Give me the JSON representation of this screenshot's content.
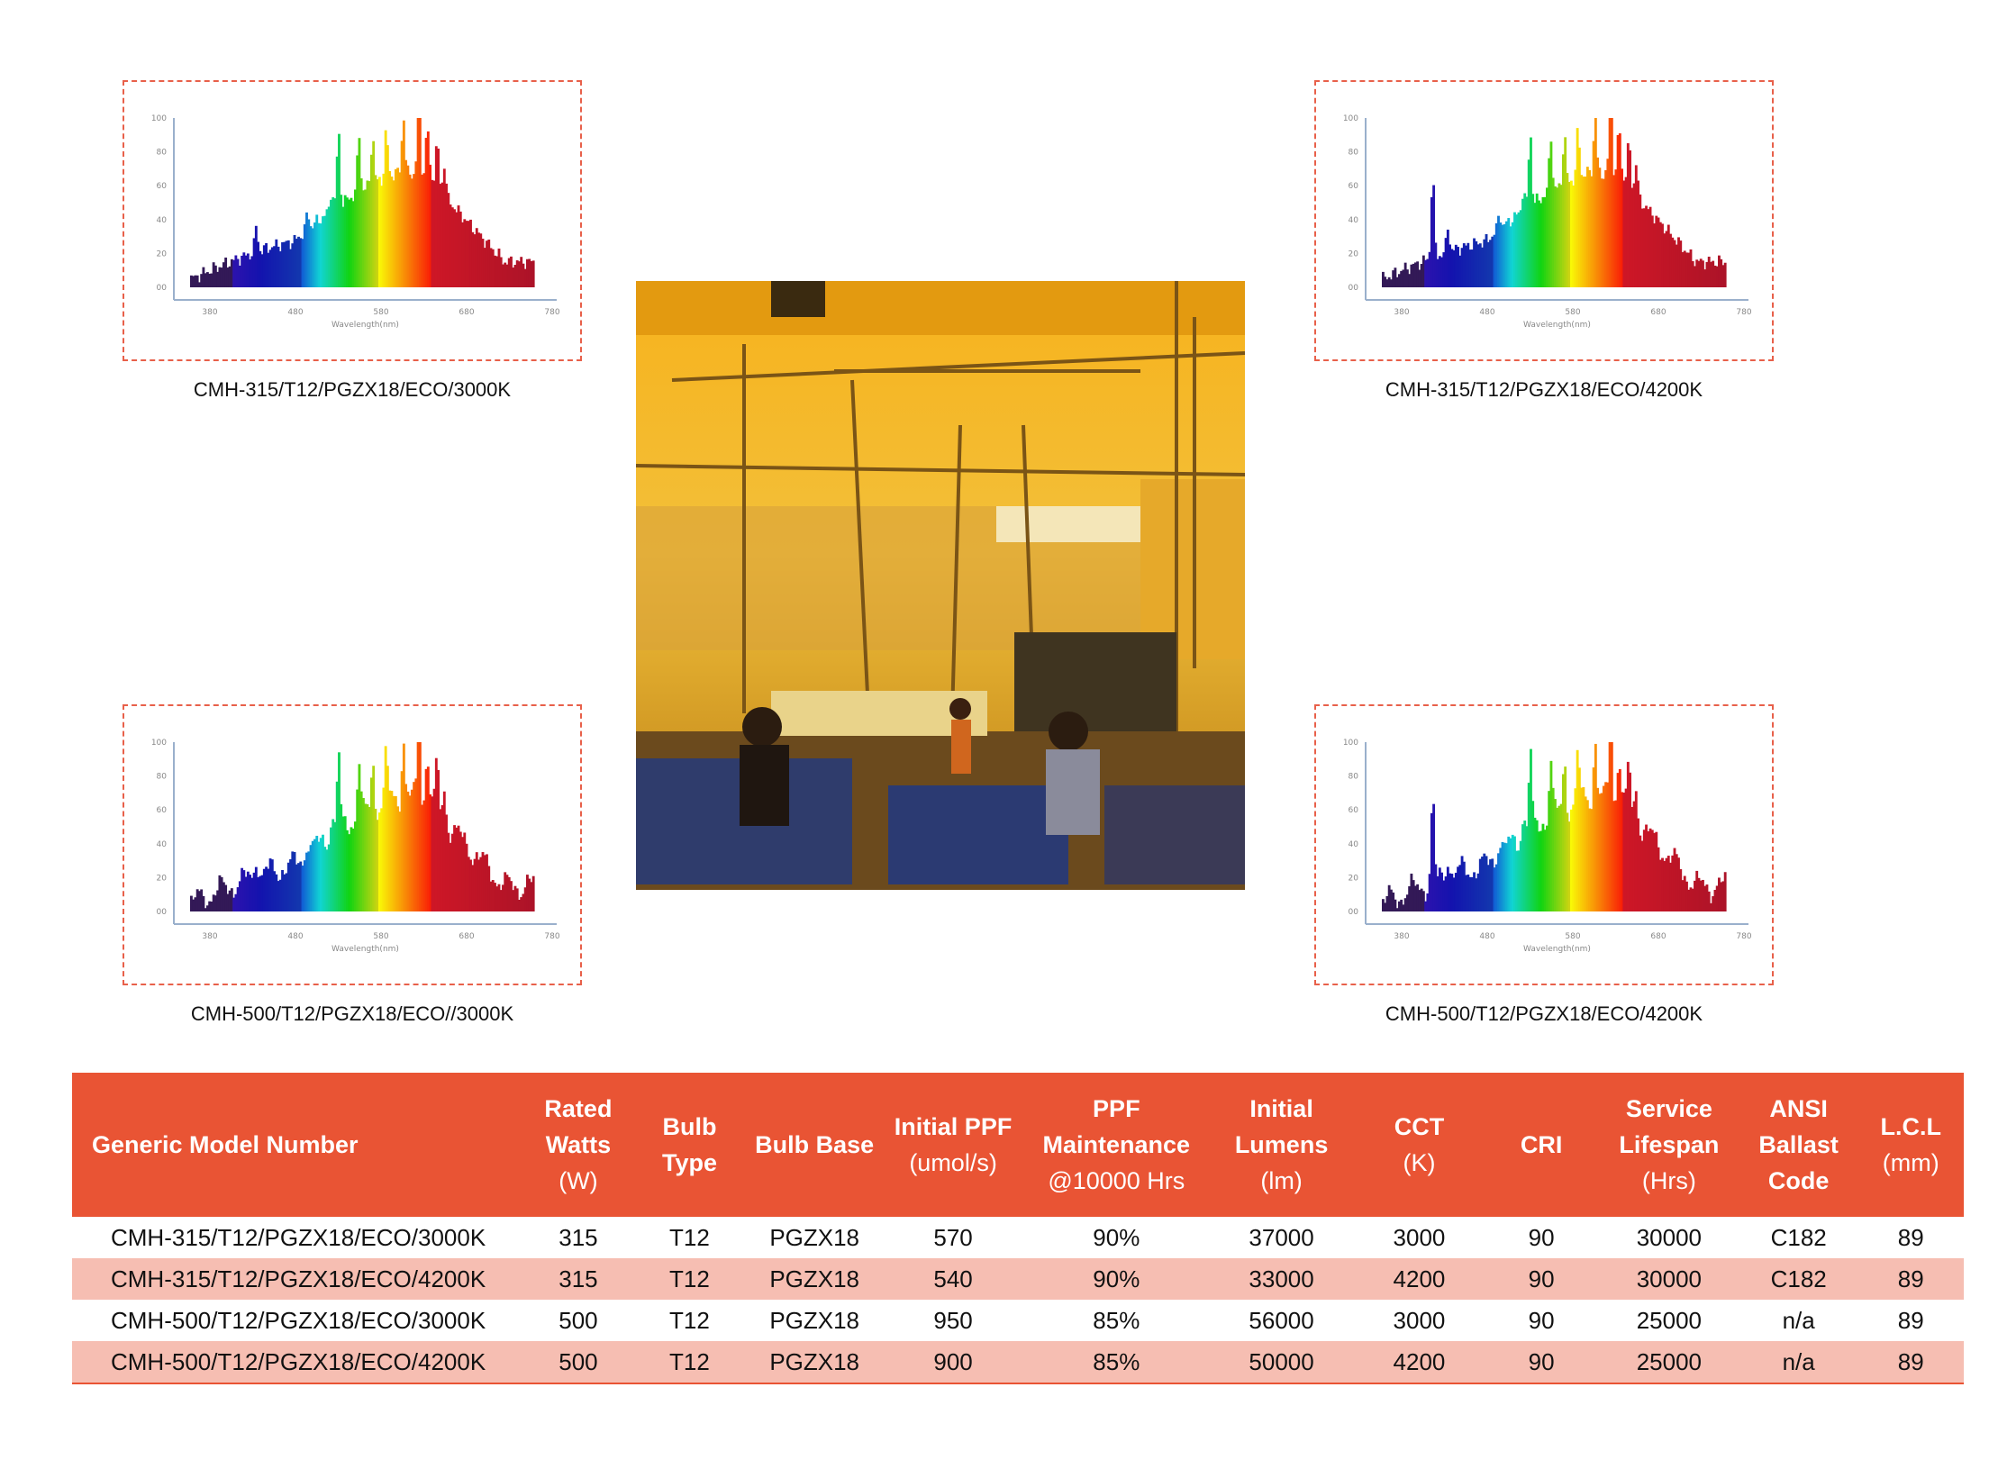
{
  "colors": {
    "accent": "#e95434",
    "row_shade": "#f6beb2",
    "dashed_border": "#e8604a"
  },
  "spectra": [
    {
      "caption": "CMH-315/T12/PGZX18/ECO/3000K"
    },
    {
      "caption": "CMH-315/T12/PGZX18/ECO/4200K"
    },
    {
      "caption": "CMH-500/T12/PGZX18/ECO//3000K"
    },
    {
      "caption": "CMH-500/T12/PGZX18/ECO/4200K"
    }
  ],
  "spectrum_axes": {
    "y_ticks": [
      "100",
      "80",
      "60",
      "40",
      "20",
      "00"
    ],
    "x_ticks": [
      "380",
      "480",
      "580",
      "680",
      "780"
    ],
    "x_label": "Wavelength(nm)"
  },
  "table": {
    "headers": [
      {
        "label": "Generic Model Number",
        "unit": ""
      },
      {
        "label": "Rated Watts",
        "unit": "(W)"
      },
      {
        "label": "Bulb Type",
        "unit": ""
      },
      {
        "label": "Bulb Base",
        "unit": ""
      },
      {
        "label": "Initial PPF",
        "unit": "(umol/s)"
      },
      {
        "label": "PPF Maintenance",
        "unit": "@10000 Hrs"
      },
      {
        "label": "Initial Lumens",
        "unit": "(lm)"
      },
      {
        "label": "CCT",
        "unit": "(K)"
      },
      {
        "label": "CRI",
        "unit": ""
      },
      {
        "label": "Service Lifespan",
        "unit": "(Hrs)"
      },
      {
        "label": "ANSI Ballast Code",
        "unit": ""
      },
      {
        "label": "L.C.L",
        "unit": "(mm)"
      }
    ],
    "rows": [
      [
        "CMH-315/T12/PGZX18/ECO/3000K",
        "315",
        "T12",
        "PGZX18",
        "570",
        "90%",
        "37000",
        "3000",
        "90",
        "30000",
        "C182",
        "89"
      ],
      [
        "CMH-315/T12/PGZX18/ECO/4200K",
        "315",
        "T12",
        "PGZX18",
        "540",
        "90%",
        "33000",
        "4200",
        "90",
        "30000",
        "C182",
        "89"
      ],
      [
        "CMH-500/T12/PGZX18/ECO/3000K",
        "500",
        "T12",
        "PGZX18",
        "950",
        "85%",
        "56000",
        "3000",
        "90",
        "25000",
        "n/a",
        "89"
      ],
      [
        "CMH-500/T12/PGZX18/ECO/4200K",
        "500",
        "T12",
        "PGZX18",
        "900",
        "85%",
        "50000",
        "4200",
        "90",
        "25000",
        "n/a",
        "89"
      ]
    ]
  }
}
